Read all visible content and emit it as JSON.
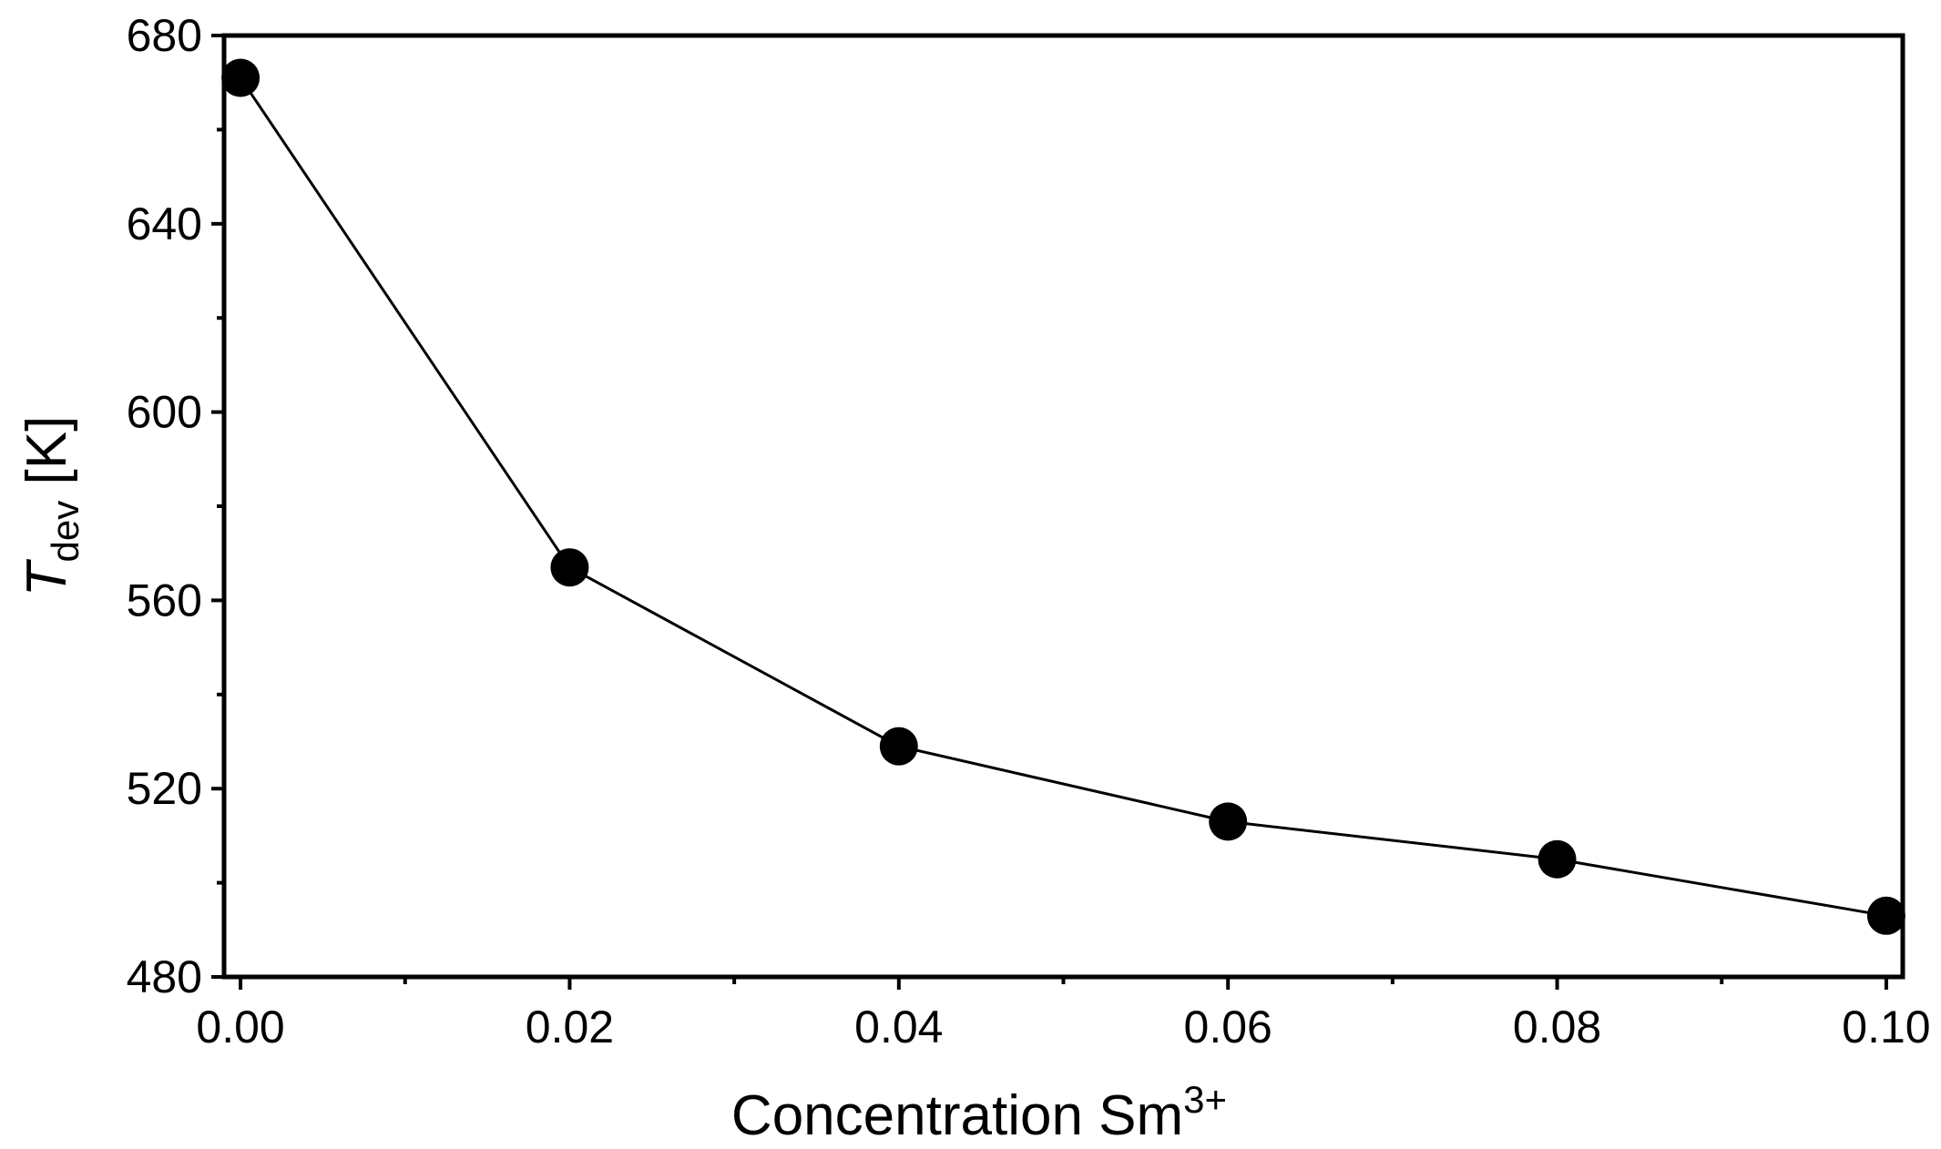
{
  "chart_data": {
    "type": "line",
    "title": "",
    "xlabel": {
      "main": "Concentration Sm",
      "superscript": "3+"
    },
    "ylabel": {
      "symbol": "T",
      "subscript": "dev",
      "unit": " [K]"
    },
    "xlim": [
      -0.001,
      0.101
    ],
    "ylim": [
      480,
      680
    ],
    "xticks": [
      0.0,
      0.02,
      0.04,
      0.06,
      0.08,
      0.1
    ],
    "xtick_labels": [
      "0.00",
      "0.02",
      "0.04",
      "0.06",
      "0.08",
      "0.10"
    ],
    "yticks": [
      480,
      520,
      560,
      600,
      640,
      680
    ],
    "ytick_labels": [
      "480",
      "520",
      "560",
      "600",
      "640",
      "680"
    ],
    "x_minor_ticks": [
      0.01,
      0.03,
      0.05,
      0.07,
      0.09
    ],
    "y_minor_ticks": [
      500,
      540,
      580,
      620,
      660
    ],
    "grid": false,
    "series": [
      {
        "name": "Tdev",
        "x": [
          0.0,
          0.02,
          0.04,
          0.06,
          0.08,
          0.1
        ],
        "y": [
          671,
          567,
          529,
          513,
          505,
          493
        ],
        "color": "#000000",
        "marker": "circle"
      }
    ]
  }
}
